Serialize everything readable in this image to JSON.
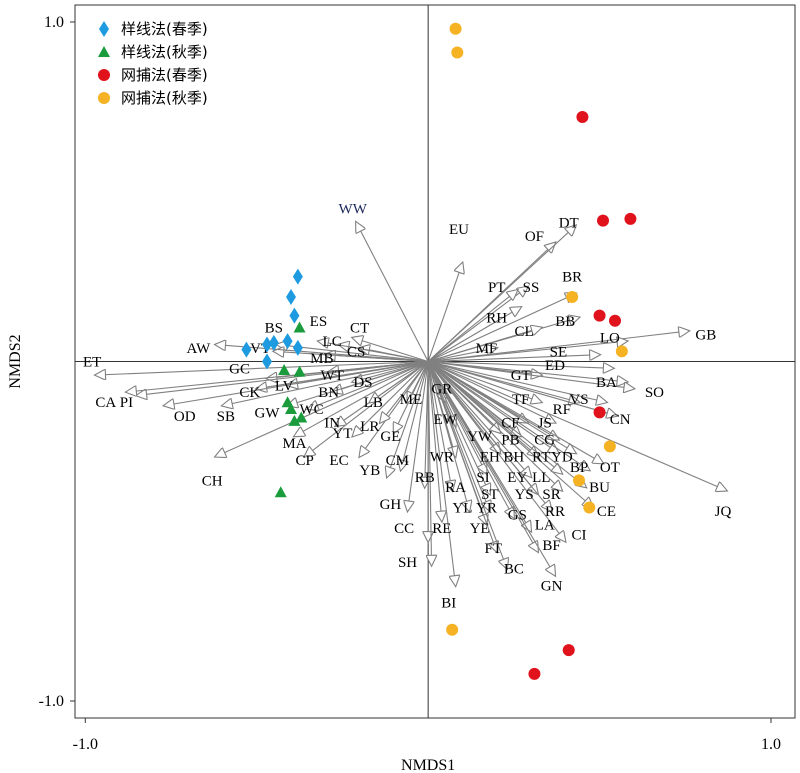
{
  "chart_data": {
    "type": "scatter",
    "xlabel": "NMDS1",
    "ylabel": "NMDS2",
    "xlim": [
      -1.03,
      1.07
    ],
    "ylim": [
      -1.05,
      1.05
    ],
    "xticks": [
      {
        "value": -1.0,
        "label": "-1.0"
      },
      {
        "value": 1.0,
        "label": "1.0"
      }
    ],
    "yticks": [
      {
        "value": 1.0,
        "label": "1.0"
      },
      {
        "value": -1.0,
        "label": "-1.0"
      }
    ],
    "reference_lines": {
      "x": 0,
      "y": 0
    },
    "legend": {
      "position": "top-left",
      "entries": [
        {
          "label": "样线法(春季)",
          "marker": "diamond",
          "color": "#1e9be0"
        },
        {
          "label": "样线法(秋季)",
          "marker": "triangle",
          "color": "#1a9b3c"
        },
        {
          "label": "网捕法(春季)",
          "marker": "circle",
          "color": "#e0121c"
        },
        {
          "label": "网捕法(秋季)",
          "marker": "circle",
          "color": "#f5b324"
        }
      ]
    },
    "series": [
      {
        "marker": "diamond",
        "color": "#1e9be0",
        "points": [
          [
            -0.38,
            0.25
          ],
          [
            -0.4,
            0.19
          ],
          [
            -0.39,
            0.135
          ],
          [
            -0.38,
            0.04
          ],
          [
            -0.41,
            0.06
          ],
          [
            -0.45,
            0.055
          ],
          [
            -0.47,
            0.05
          ],
          [
            -0.53,
            0.035
          ],
          [
            -0.47,
            0.0
          ]
        ]
      },
      {
        "marker": "triangle",
        "color": "#1a9b3c",
        "points": [
          [
            -0.375,
            0.1
          ],
          [
            -0.42,
            -0.025
          ],
          [
            -0.375,
            -0.03
          ],
          [
            -0.41,
            -0.12
          ],
          [
            -0.4,
            -0.14
          ],
          [
            -0.37,
            -0.165
          ],
          [
            -0.39,
            -0.175
          ],
          [
            -0.43,
            -0.385
          ]
        ]
      },
      {
        "marker": "circle",
        "color": "#e0121c",
        "points": [
          [
            0.45,
            0.72
          ],
          [
            0.51,
            0.415
          ],
          [
            0.59,
            0.42
          ],
          [
            0.5,
            0.135
          ],
          [
            0.545,
            0.12
          ],
          [
            0.5,
            -0.15
          ],
          [
            0.41,
            -0.85
          ],
          [
            0.31,
            -0.92
          ]
        ]
      },
      {
        "marker": "circle",
        "color": "#f5b324",
        "points": [
          [
            0.08,
            0.98
          ],
          [
            0.085,
            0.91
          ],
          [
            0.42,
            0.19
          ],
          [
            0.565,
            0.03
          ],
          [
            0.53,
            -0.25
          ],
          [
            0.44,
            -0.35
          ],
          [
            0.47,
            -0.43
          ],
          [
            0.07,
            -0.79
          ]
        ]
      }
    ],
    "vectors": [
      {
        "label": "WW",
        "x": -0.21,
        "y": 0.41,
        "label_color": "#1c2a5c"
      },
      {
        "label": "EU",
        "x": 0.1,
        "y": 0.29
      },
      {
        "label": "OF",
        "x": 0.37,
        "y": 0.35
      },
      {
        "label": "DT",
        "x": 0.43,
        "y": 0.4
      },
      {
        "label": "SS",
        "x": 0.29,
        "y": 0.22
      },
      {
        "label": "BR",
        "x": 0.43,
        "y": 0.2
      },
      {
        "label": "PT",
        "x": 0.26,
        "y": 0.21
      },
      {
        "label": "RH",
        "x": 0.27,
        "y": 0.16
      },
      {
        "label": "BB",
        "x": 0.44,
        "y": 0.13
      },
      {
        "label": "CL",
        "x": 0.33,
        "y": 0.1
      },
      {
        "label": "GB",
        "x": 0.76,
        "y": 0.09
      },
      {
        "label": "LO",
        "x": 0.58,
        "y": 0.06
      },
      {
        "label": "MF",
        "x": 0.2,
        "y": 0.04
      },
      {
        "label": "SE",
        "x": 0.5,
        "y": 0.02
      },
      {
        "label": "ED",
        "x": 0.54,
        "y": -0.02
      },
      {
        "label": "GT",
        "x": 0.33,
        "y": -0.04
      },
      {
        "label": "BA",
        "x": 0.58,
        "y": -0.06
      },
      {
        "label": "SO",
        "x": 0.6,
        "y": -0.08
      },
      {
        "label": "VS",
        "x": 0.52,
        "y": -0.12
      },
      {
        "label": "RF",
        "x": 0.44,
        "y": -0.12
      },
      {
        "label": "TF",
        "x": 0.33,
        "y": -0.12
      },
      {
        "label": "CN",
        "x": 0.55,
        "y": -0.16
      },
      {
        "label": "JS",
        "x": 0.37,
        "y": -0.18
      },
      {
        "label": "CF",
        "x": 0.29,
        "y": -0.18
      },
      {
        "label": "CG",
        "x": 0.38,
        "y": -0.23
      },
      {
        "label": "PB",
        "x": 0.27,
        "y": -0.22
      },
      {
        "label": "YW",
        "x": 0.21,
        "y": -0.21
      },
      {
        "label": "EW",
        "x": 0.08,
        "y": -0.19
      },
      {
        "label": "GR",
        "x": 0.05,
        "y": -0.12
      },
      {
        "label": "YD",
        "x": 0.43,
        "y": -0.27
      },
      {
        "label": "RT",
        "x": 0.38,
        "y": -0.27
      },
      {
        "label": "BH",
        "x": 0.32,
        "y": -0.28
      },
      {
        "label": "EH",
        "x": 0.21,
        "y": -0.27
      },
      {
        "label": "WR",
        "x": 0.08,
        "y": -0.28
      },
      {
        "label": "OT",
        "x": 0.51,
        "y": -0.3
      },
      {
        "label": "BP",
        "x": 0.47,
        "y": -0.32
      },
      {
        "label": "LL",
        "x": 0.39,
        "y": -0.33
      },
      {
        "label": "EY",
        "x": 0.3,
        "y": -0.34
      },
      {
        "label": "SI",
        "x": 0.17,
        "y": -0.33
      },
      {
        "label": "BU",
        "x": 0.46,
        "y": -0.37
      },
      {
        "label": "SR",
        "x": 0.39,
        "y": -0.38
      },
      {
        "label": "YS",
        "x": 0.32,
        "y": -0.39
      },
      {
        "label": "ST",
        "x": 0.18,
        "y": -0.39
      },
      {
        "label": "RA",
        "x": 0.07,
        "y": -0.38
      },
      {
        "label": "RB",
        "x": -0.01,
        "y": -0.37
      },
      {
        "label": "JQ",
        "x": 0.87,
        "y": -0.38
      },
      {
        "label": "CE",
        "x": 0.48,
        "y": -0.43
      },
      {
        "label": "RR",
        "x": 0.36,
        "y": -0.44
      },
      {
        "label": "GS",
        "x": 0.25,
        "y": -0.46
      },
      {
        "label": "YR",
        "x": 0.18,
        "y": -0.44
      },
      {
        "label": "YL",
        "x": 0.12,
        "y": -0.44
      },
      {
        "label": "LA",
        "x": 0.3,
        "y": -0.5
      },
      {
        "label": "CI",
        "x": 0.4,
        "y": -0.53
      },
      {
        "label": "YE",
        "x": 0.17,
        "y": -0.48
      },
      {
        "label": "BF",
        "x": 0.32,
        "y": -0.56
      },
      {
        "label": "FT",
        "x": 0.2,
        "y": -0.56
      },
      {
        "label": "BC",
        "x": 0.23,
        "y": -0.61
      },
      {
        "label": "GN",
        "x": 0.37,
        "y": -0.63
      },
      {
        "label": "RE",
        "x": 0.04,
        "y": -0.47
      },
      {
        "label": "CC",
        "x": 0.0,
        "y": -0.53
      },
      {
        "label": "SH",
        "x": 0.01,
        "y": -0.6
      },
      {
        "label": "BI",
        "x": 0.08,
        "y": -0.66
      },
      {
        "label": "GH",
        "x": -0.06,
        "y": -0.44
      },
      {
        "label": "CM",
        "x": -0.08,
        "y": -0.32
      },
      {
        "label": "YB",
        "x": -0.12,
        "y": -0.34
      },
      {
        "label": "EC",
        "x": -0.2,
        "y": -0.28
      },
      {
        "label": "CP",
        "x": -0.36,
        "y": -0.28
      },
      {
        "label": "GE",
        "x": -0.1,
        "y": -0.21
      },
      {
        "label": "LR",
        "x": -0.14,
        "y": -0.18
      },
      {
        "label": "YT",
        "x": -0.22,
        "y": -0.22
      },
      {
        "label": "IN",
        "x": -0.27,
        "y": -0.19
      },
      {
        "label": "LB",
        "x": -0.17,
        "y": -0.12
      },
      {
        "label": "ME",
        "x": -0.06,
        "y": -0.12
      },
      {
        "label": "DS",
        "x": -0.22,
        "y": -0.06
      },
      {
        "label": "BN",
        "x": -0.28,
        "y": -0.09
      },
      {
        "label": "WC",
        "x": -0.35,
        "y": -0.14
      },
      {
        "label": "MA",
        "x": -0.39,
        "y": -0.22
      },
      {
        "label": "GW",
        "x": -0.41,
        "y": -0.13
      },
      {
        "label": "WT",
        "x": -0.29,
        "y": -0.03
      },
      {
        "label": "LV",
        "x": -0.41,
        "y": -0.07
      },
      {
        "label": "MB",
        "x": -0.3,
        "y": 0.02
      },
      {
        "label": "CS",
        "x": -0.2,
        "y": 0.04
      },
      {
        "label": "CT",
        "x": -0.22,
        "y": 0.07
      },
      {
        "label": "LC",
        "x": -0.26,
        "y": 0.05
      },
      {
        "label": "ES",
        "x": -0.32,
        "y": 0.06
      },
      {
        "label": "BS",
        "x": -0.44,
        "y": 0.05
      },
      {
        "label": "VT",
        "x": -0.45,
        "y": 0.03
      },
      {
        "label": "AW",
        "x": -0.62,
        "y": 0.05
      },
      {
        "label": "GC",
        "x": -0.47,
        "y": -0.05
      },
      {
        "label": "CK",
        "x": -0.5,
        "y": -0.08
      },
      {
        "label": "ET",
        "x": -0.97,
        "y": -0.04
      },
      {
        "label": "PI",
        "x": -0.85,
        "y": -0.1
      },
      {
        "label": "CA",
        "x": -0.88,
        "y": -0.09
      },
      {
        "label": "OD",
        "x": -0.77,
        "y": -0.13
      },
      {
        "label": "SB",
        "x": -0.6,
        "y": -0.13
      },
      {
        "label": "CH",
        "x": -0.62,
        "y": -0.28
      }
    ],
    "vector_labels": [
      {
        "text": "WW",
        "x": -0.22,
        "y": 0.45,
        "color": "#1c2a5c"
      },
      {
        "text": "EU",
        "x": 0.09,
        "y": 0.39
      },
      {
        "text": "OF",
        "x": 0.31,
        "y": 0.37
      },
      {
        "text": "DT",
        "x": 0.41,
        "y": 0.41
      },
      {
        "text": "SS",
        "x": 0.3,
        "y": 0.22
      },
      {
        "text": "BR",
        "x": 0.42,
        "y": 0.25
      },
      {
        "text": "PT",
        "x": 0.2,
        "y": 0.22
      },
      {
        "text": "RH",
        "x": 0.2,
        "y": 0.13
      },
      {
        "text": "BB",
        "x": 0.4,
        "y": 0.12
      },
      {
        "text": "CL",
        "x": 0.28,
        "y": 0.09
      },
      {
        "text": "GB",
        "x": 0.81,
        "y": 0.08
      },
      {
        "text": "LO",
        "x": 0.53,
        "y": 0.07
      },
      {
        "text": "MF",
        "x": 0.17,
        "y": 0.04
      },
      {
        "text": "SE",
        "x": 0.38,
        "y": 0.03
      },
      {
        "text": "ED",
        "x": 0.37,
        "y": -0.01
      },
      {
        "text": "GT",
        "x": 0.27,
        "y": -0.04
      },
      {
        "text": "BA",
        "x": 0.52,
        "y": -0.06
      },
      {
        "text": "SO",
        "x": 0.66,
        "y": -0.09
      },
      {
        "text": "VS",
        "x": 0.44,
        "y": -0.11
      },
      {
        "text": "RF",
        "x": 0.39,
        "y": -0.14
      },
      {
        "text": "TF",
        "x": 0.27,
        "y": -0.11
      },
      {
        "text": "CN",
        "x": 0.56,
        "y": -0.17
      },
      {
        "text": "JS",
        "x": 0.34,
        "y": -0.18
      },
      {
        "text": "CF",
        "x": 0.24,
        "y": -0.18
      },
      {
        "text": "CG",
        "x": 0.34,
        "y": -0.23
      },
      {
        "text": "PB",
        "x": 0.24,
        "y": -0.23
      },
      {
        "text": "YW",
        "x": 0.15,
        "y": -0.22
      },
      {
        "text": "EW",
        "x": 0.05,
        "y": -0.17
      },
      {
        "text": "GR",
        "x": 0.04,
        "y": -0.08
      },
      {
        "text": "YD",
        "x": 0.39,
        "y": -0.28
      },
      {
        "text": "RT",
        "x": 0.33,
        "y": -0.28
      },
      {
        "text": "BH",
        "x": 0.25,
        "y": -0.28
      },
      {
        "text": "EH",
        "x": 0.18,
        "y": -0.28
      },
      {
        "text": "WR",
        "x": 0.04,
        "y": -0.28
      },
      {
        "text": "OT",
        "x": 0.53,
        "y": -0.31
      },
      {
        "text": "BP",
        "x": 0.44,
        "y": -0.31
      },
      {
        "text": "LL",
        "x": 0.33,
        "y": -0.34
      },
      {
        "text": "EY",
        "x": 0.26,
        "y": -0.34
      },
      {
        "text": "SI",
        "x": 0.16,
        "y": -0.34
      },
      {
        "text": "BU",
        "x": 0.5,
        "y": -0.37
      },
      {
        "text": "SR",
        "x": 0.36,
        "y": -0.39
      },
      {
        "text": "YS",
        "x": 0.28,
        "y": -0.39
      },
      {
        "text": "ST",
        "x": 0.18,
        "y": -0.39
      },
      {
        "text": "RA",
        "x": 0.08,
        "y": -0.37
      },
      {
        "text": "RB",
        "x": -0.01,
        "y": -0.34
      },
      {
        "text": "JQ",
        "x": 0.86,
        "y": -0.44
      },
      {
        "text": "CE",
        "x": 0.52,
        "y": -0.44
      },
      {
        "text": "RR",
        "x": 0.37,
        "y": -0.44
      },
      {
        "text": "GS",
        "x": 0.26,
        "y": -0.45
      },
      {
        "text": "YR",
        "x": 0.17,
        "y": -0.43
      },
      {
        "text": "YL",
        "x": 0.1,
        "y": -0.43
      },
      {
        "text": "LA",
        "x": 0.34,
        "y": -0.48
      },
      {
        "text": "CI",
        "x": 0.44,
        "y": -0.51
      },
      {
        "text": "YE",
        "x": 0.15,
        "y": -0.49
      },
      {
        "text": "BF",
        "x": 0.36,
        "y": -0.54
      },
      {
        "text": "FT",
        "x": 0.19,
        "y": -0.55
      },
      {
        "text": "BC",
        "x": 0.25,
        "y": -0.61
      },
      {
        "text": "GN",
        "x": 0.36,
        "y": -0.66
      },
      {
        "text": "RE",
        "x": 0.04,
        "y": -0.49
      },
      {
        "text": "CC",
        "x": -0.07,
        "y": -0.49
      },
      {
        "text": "SH",
        "x": -0.06,
        "y": -0.59
      },
      {
        "text": "BI",
        "x": 0.06,
        "y": -0.71
      },
      {
        "text": "GH",
        "x": -0.11,
        "y": -0.42
      },
      {
        "text": "CM",
        "x": -0.09,
        "y": -0.29
      },
      {
        "text": "YB",
        "x": -0.17,
        "y": -0.32
      },
      {
        "text": "EC",
        "x": -0.26,
        "y": -0.29
      },
      {
        "text": "CP",
        "x": -0.36,
        "y": -0.29
      },
      {
        "text": "GE",
        "x": -0.11,
        "y": -0.22
      },
      {
        "text": "LR",
        "x": -0.17,
        "y": -0.19
      },
      {
        "text": "YT",
        "x": -0.25,
        "y": -0.21
      },
      {
        "text": "IN",
        "x": -0.28,
        "y": -0.18
      },
      {
        "text": "LB",
        "x": -0.16,
        "y": -0.12
      },
      {
        "text": "ME",
        "x": -0.05,
        "y": -0.11
      },
      {
        "text": "DS",
        "x": -0.19,
        "y": -0.06
      },
      {
        "text": "BN",
        "x": -0.29,
        "y": -0.09
      },
      {
        "text": "WC",
        "x": -0.34,
        "y": -0.14
      },
      {
        "text": "MA",
        "x": -0.39,
        "y": -0.24
      },
      {
        "text": "GW",
        "x": -0.47,
        "y": -0.15
      },
      {
        "text": "WT",
        "x": -0.28,
        "y": -0.04
      },
      {
        "text": "LV",
        "x": -0.42,
        "y": -0.07
      },
      {
        "text": "MB",
        "x": -0.31,
        "y": 0.01
      },
      {
        "text": "CS",
        "x": -0.21,
        "y": 0.03
      },
      {
        "text": "CT",
        "x": -0.2,
        "y": 0.1
      },
      {
        "text": "LC",
        "x": -0.28,
        "y": 0.06
      },
      {
        "text": "ES",
        "x": -0.32,
        "y": 0.12
      },
      {
        "text": "BS",
        "x": -0.45,
        "y": 0.1
      },
      {
        "text": "VT",
        "x": -0.49,
        "y": 0.04
      },
      {
        "text": "AW",
        "x": -0.67,
        "y": 0.04
      },
      {
        "text": "GC",
        "x": -0.55,
        "y": -0.02
      },
      {
        "text": "CK",
        "x": -0.52,
        "y": -0.09
      },
      {
        "text": "ET",
        "x": -0.98,
        "y": 0.0
      },
      {
        "text": "PI",
        "x": -0.88,
        "y": -0.12
      },
      {
        "text": "CA",
        "x": -0.94,
        "y": -0.12
      },
      {
        "text": "OD",
        "x": -0.71,
        "y": -0.16
      },
      {
        "text": "SB",
        "x": -0.59,
        "y": -0.16
      },
      {
        "text": "CH",
        "x": -0.63,
        "y": -0.35
      }
    ]
  }
}
